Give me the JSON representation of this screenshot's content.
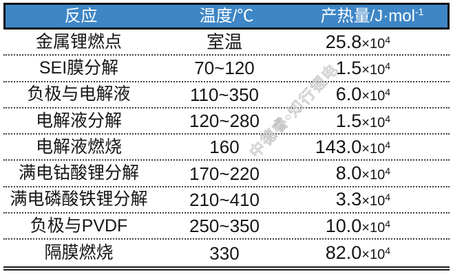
{
  "table": {
    "headers": [
      {
        "label": "反应"
      },
      {
        "label": "温度/℃"
      },
      {
        "label": "产热量/J·mol",
        "sup": "-1"
      }
    ],
    "times_symbol": "×10",
    "exponent": "4",
    "rows": [
      {
        "reaction": "金属锂燃点",
        "temperature": "室温",
        "heat": "25.8"
      },
      {
        "reaction": "SEI膜分解",
        "temperature": "70~120",
        "heat": "1.5"
      },
      {
        "reaction": "负极与电解液",
        "temperature": "110~350",
        "heat": "6.0"
      },
      {
        "reaction": "电解液分解",
        "temperature": "120~280",
        "heat": "1.5"
      },
      {
        "reaction": "电解液燃烧",
        "temperature": "160",
        "heat": "143.0"
      },
      {
        "reaction": "满电钴酸锂分解",
        "temperature": "170~220",
        "heat": "8.0"
      },
      {
        "reaction": "满电磷酸铁锂分解",
        "temperature": "210~410",
        "heat": "3.3"
      },
      {
        "reaction": "负极与PVDF",
        "temperature": "250~350",
        "heat": "10.0"
      },
      {
        "reaction": "隔膜燃烧",
        "temperature": "330",
        "heat": "82.0"
      }
    ]
  },
  "watermark": {
    "text": "中德睿•知行锂电"
  },
  "colors": {
    "header_bg": "#3E86C6",
    "header_text": "#FFFFFF",
    "header_border": "#0D0D0D",
    "body_text": "#161616",
    "dotted_separator": "#3F3F3F",
    "watermark": "#C0C0C0"
  },
  "chart_data": {
    "type": "table",
    "title": "",
    "columns": [
      "反应",
      "温度/℃",
      "产热量/J·mol⁻¹"
    ],
    "rows": [
      [
        "金属锂燃点",
        "室温",
        "25.8×10⁴"
      ],
      [
        "SEI膜分解",
        "70~120",
        "1.5×10⁴"
      ],
      [
        "负极与电解液",
        "110~350",
        "6.0×10⁴"
      ],
      [
        "电解液分解",
        "120~280",
        "1.5×10⁴"
      ],
      [
        "电解液燃烧",
        "160",
        "143.0×10⁴"
      ],
      [
        "满电钴酸锂分解",
        "170~220",
        "8.0×10⁴"
      ],
      [
        "满电磷酸铁锂分解",
        "210~410",
        "3.3×10⁴"
      ],
      [
        "负极与PVDF",
        "250~350",
        "10.0×10⁴"
      ],
      [
        "隔膜燃烧",
        "330",
        "82.0×10⁴"
      ]
    ]
  }
}
